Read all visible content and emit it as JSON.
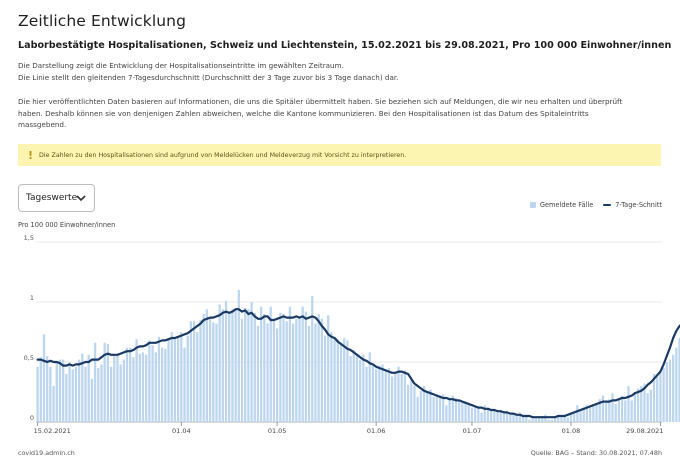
{
  "page": {
    "title": "Zeitliche Entwicklung",
    "subtitle": "Laborbestätigte Hospitalisationen, Schweiz und Liechtenstein, 15.02.2021 bis 29.08.2021, Pro 100 000 Einwohner/innen",
    "description_1": "Die Darstellung zeigt die Entwicklung der Hospitalisationseintritte im gewählten Zeitraum.",
    "description_2": "Die Linie stellt den gleitenden 7-Tagesdurchschnitt (Durchschnitt der 3 Tage zuvor bis 3 Tage danach) dar.",
    "info_1": "Die hier veröffentlichten Daten basieren auf Informationen, die uns die Spitäler übermittelt haben. Sie beziehen sich auf Meldungen, die wir neu erhalten und überprüft",
    "info_2": "haben. Deshalb können sie von denjenigen Zahlen abweichen, welche die Kantone kommunizieren. Bei den Hospitalisationen ist das Datum des Spitaleintritts",
    "info_3": "massgebend.",
    "warning": "Die Zahlen zu den Hospitalisationen sind aufgrund von Meldelücken und Meldeverzug mit Vorsicht zu interpretieren.",
    "warning_icon": "exclamation-icon",
    "select_value": "Tageswerte",
    "footer_left": "covid19.admin.ch",
    "footer_right": "Quelle: BAG – Stand: 30.08.2021, 07.48h"
  },
  "colors": {
    "bar": "#bdd6ee",
    "line": "#1b3a63",
    "warning_bg": "#fbf5b1"
  },
  "chart_data": {
    "type": "bar",
    "ylabel": "Pro 100 000 Einwohner/innen",
    "ylim": [
      0,
      1.5
    ],
    "y_ticks": [
      {
        "value": 0,
        "label": "0"
      },
      {
        "value": 0.5,
        "label": "0,5"
      },
      {
        "value": 1,
        "label": "1"
      },
      {
        "value": 1.5,
        "label": "1,5"
      }
    ],
    "x_ticks": [
      {
        "date": "2021-02-15",
        "label": "15.02.2021"
      },
      {
        "date": "2021-04-01",
        "label": "01.04"
      },
      {
        "date": "2021-05-01",
        "label": "01.05"
      },
      {
        "date": "2021-06-01",
        "label": "01.06"
      },
      {
        "date": "2021-07-01",
        "label": "01.07"
      },
      {
        "date": "2021-08-01",
        "label": "01.08"
      },
      {
        "date": "2021-08-29",
        "label": "29.08.2021"
      }
    ],
    "x_range": [
      "2021-02-15",
      "2021-08-29"
    ],
    "grid": "horizontal",
    "legend_position": "top-right",
    "series": [
      {
        "name": "Gemeldete Fälle",
        "kind": "bar",
        "values": [
          0.46,
          0.54,
          0.73,
          0.55,
          0.46,
          0.3,
          0.5,
          0.52,
          0.52,
          0.4,
          0.5,
          0.44,
          0.46,
          0.52,
          0.57,
          0.46,
          0.56,
          0.36,
          0.66,
          0.45,
          0.48,
          0.66,
          0.65,
          0.46,
          0.55,
          0.56,
          0.48,
          0.52,
          0.62,
          0.62,
          0.54,
          0.69,
          0.57,
          0.58,
          0.56,
          0.68,
          0.64,
          0.58,
          0.71,
          0.62,
          0.61,
          0.7,
          0.75,
          0.7,
          0.71,
          0.75,
          0.62,
          0.72,
          0.84,
          0.84,
          0.75,
          0.85,
          0.9,
          0.94,
          0.87,
          0.83,
          0.82,
          0.98,
          0.94,
          1.01,
          0.92,
          0.94,
          0.93,
          1.1,
          0.86,
          0.95,
          0.94,
          1.0,
          0.91,
          0.8,
          0.96,
          0.9,
          0.82,
          0.96,
          0.86,
          0.78,
          0.91,
          0.9,
          0.84,
          0.96,
          0.82,
          0.86,
          0.88,
          0.96,
          0.92,
          0.8,
          1.05,
          0.82,
          0.9,
          0.86,
          0.72,
          0.89,
          0.75,
          0.7,
          0.69,
          0.64,
          0.7,
          0.68,
          0.55,
          0.6,
          0.57,
          0.52,
          0.56,
          0.46,
          0.58,
          0.48,
          0.44,
          0.47,
          0.48,
          0.44,
          0.45,
          0.38,
          0.4,
          0.46,
          0.4,
          0.43,
          0.31,
          0.35,
          0.3,
          0.21,
          0.26,
          0.3,
          0.25,
          0.27,
          0.21,
          0.23,
          0.22,
          0.23,
          0.14,
          0.2,
          0.22,
          0.2,
          0.18,
          0.16,
          0.16,
          0.16,
          0.12,
          0.13,
          0.13,
          0.08,
          0.14,
          0.12,
          0.1,
          0.11,
          0.08,
          0.09,
          0.07,
          0.08,
          0.06,
          0.07,
          0.05,
          0.08,
          0.05,
          0.06,
          0.02,
          0.03,
          0.03,
          0.04,
          0.05,
          0.06,
          0.02,
          0.02,
          0.05,
          0.06,
          0.04,
          0.06,
          0.04,
          0.08,
          0.08,
          0.14,
          0.1,
          0.12,
          0.14,
          0.13,
          0.14,
          0.16,
          0.19,
          0.22,
          0.16,
          0.19,
          0.24,
          0.15,
          0.2,
          0.22,
          0.18,
          0.3,
          0.18,
          0.24,
          0.28,
          0.3,
          0.32,
          0.24,
          0.27,
          0.4,
          0.38,
          0.42,
          0.45,
          0.5,
          0.52,
          0.56,
          0.62,
          0.7,
          0.8,
          0.94,
          0.8,
          0.9,
          0.84,
          0.85,
          0.88,
          0.88,
          0.7,
          0.92,
          0.62,
          0.5,
          0.38,
          0.24,
          0.16,
          0.06
        ]
      },
      {
        "name": "7-Tage-Schnitt",
        "kind": "line",
        "values": [
          0.52,
          0.52,
          0.51,
          0.5,
          0.51,
          0.5,
          0.5,
          0.49,
          0.47,
          0.47,
          0.48,
          0.47,
          0.48,
          0.48,
          0.49,
          0.5,
          0.5,
          0.52,
          0.52,
          0.52,
          0.54,
          0.56,
          0.57,
          0.56,
          0.56,
          0.56,
          0.57,
          0.58,
          0.59,
          0.59,
          0.6,
          0.62,
          0.63,
          0.63,
          0.64,
          0.66,
          0.66,
          0.66,
          0.67,
          0.68,
          0.68,
          0.69,
          0.7,
          0.7,
          0.71,
          0.72,
          0.73,
          0.74,
          0.76,
          0.78,
          0.8,
          0.82,
          0.85,
          0.86,
          0.87,
          0.87,
          0.88,
          0.89,
          0.91,
          0.92,
          0.91,
          0.92,
          0.94,
          0.94,
          0.92,
          0.93,
          0.9,
          0.91,
          0.88,
          0.86,
          0.86,
          0.88,
          0.88,
          0.85,
          0.85,
          0.86,
          0.87,
          0.88,
          0.87,
          0.87,
          0.87,
          0.88,
          0.87,
          0.88,
          0.86,
          0.87,
          0.88,
          0.87,
          0.84,
          0.8,
          0.77,
          0.73,
          0.71,
          0.7,
          0.67,
          0.65,
          0.63,
          0.61,
          0.6,
          0.58,
          0.56,
          0.54,
          0.52,
          0.51,
          0.49,
          0.48,
          0.46,
          0.45,
          0.44,
          0.43,
          0.42,
          0.41,
          0.41,
          0.42,
          0.42,
          0.41,
          0.4,
          0.36,
          0.32,
          0.3,
          0.28,
          0.26,
          0.25,
          0.24,
          0.23,
          0.22,
          0.21,
          0.2,
          0.2,
          0.19,
          0.19,
          0.18,
          0.18,
          0.17,
          0.16,
          0.15,
          0.14,
          0.13,
          0.12,
          0.12,
          0.11,
          0.11,
          0.1,
          0.1,
          0.09,
          0.09,
          0.08,
          0.08,
          0.07,
          0.07,
          0.06,
          0.06,
          0.05,
          0.05,
          0.05,
          0.04,
          0.04,
          0.04,
          0.04,
          0.04,
          0.04,
          0.04,
          0.04,
          0.05,
          0.05,
          0.05,
          0.06,
          0.07,
          0.08,
          0.09,
          0.1,
          0.11,
          0.12,
          0.13,
          0.14,
          0.15,
          0.16,
          0.17,
          0.17,
          0.17,
          0.18,
          0.18,
          0.19,
          0.2,
          0.2,
          0.21,
          0.22,
          0.24,
          0.25,
          0.26,
          0.28,
          0.31,
          0.33,
          0.36,
          0.39,
          0.42,
          0.48,
          0.55,
          0.62,
          0.7,
          0.76,
          0.8,
          0.82,
          0.83,
          0.84,
          0.84,
          0.82,
          0.79,
          0.72,
          0.62
        ]
      }
    ]
  }
}
